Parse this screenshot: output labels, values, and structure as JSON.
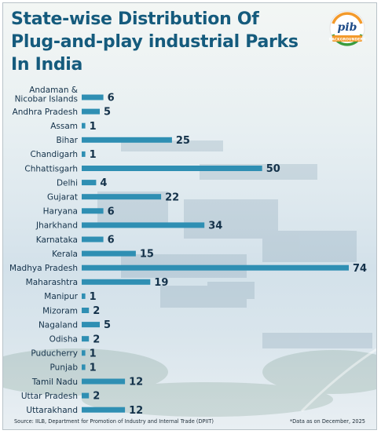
{
  "header": {
    "title": "State-wise Distribution Of Plug-and-play  industrial Parks In India",
    "logo_text": "pib",
    "logo_banner": "BACKGROUNDERS"
  },
  "colors": {
    "bar": "#2f8fb3",
    "title": "#155b7d",
    "text": "#14324a",
    "saffron": "#f39a2b",
    "green": "#3b9c3e",
    "navy": "#1f4c88"
  },
  "chart_data": {
    "type": "bar",
    "orientation": "horizontal",
    "title": "State-wise Distribution Of Plug-and-play  industrial Parks In India",
    "categories": [
      "Andaman & Nicobar Islands",
      "Andhra Pradesh",
      "Assam",
      "Bihar",
      "Chandigarh",
      "Chhattisgarh",
      "Delhi",
      "Gujarat",
      "Haryana",
      "Jharkhand",
      "Karnataka",
      "Kerala",
      "Madhya Pradesh",
      "Maharashtra",
      "Manipur",
      "Mizoram",
      "Nagaland",
      "Odisha",
      "Puducherry",
      "Punjab",
      "Tamil Nadu",
      "Uttar Pradesh",
      "Uttarakhand"
    ],
    "values": [
      6,
      5,
      1,
      25,
      1,
      50,
      4,
      22,
      6,
      34,
      6,
      15,
      74,
      19,
      1,
      2,
      5,
      2,
      1,
      1,
      12,
      2,
      12
    ],
    "xlim": [
      0,
      74
    ],
    "grid": false,
    "data_labels": true
  },
  "footer": {
    "source": "Source: IILB, Department for Promotion of Industry and Internal Trade (DPIIT)",
    "note": "*Data as on December, 2025"
  }
}
